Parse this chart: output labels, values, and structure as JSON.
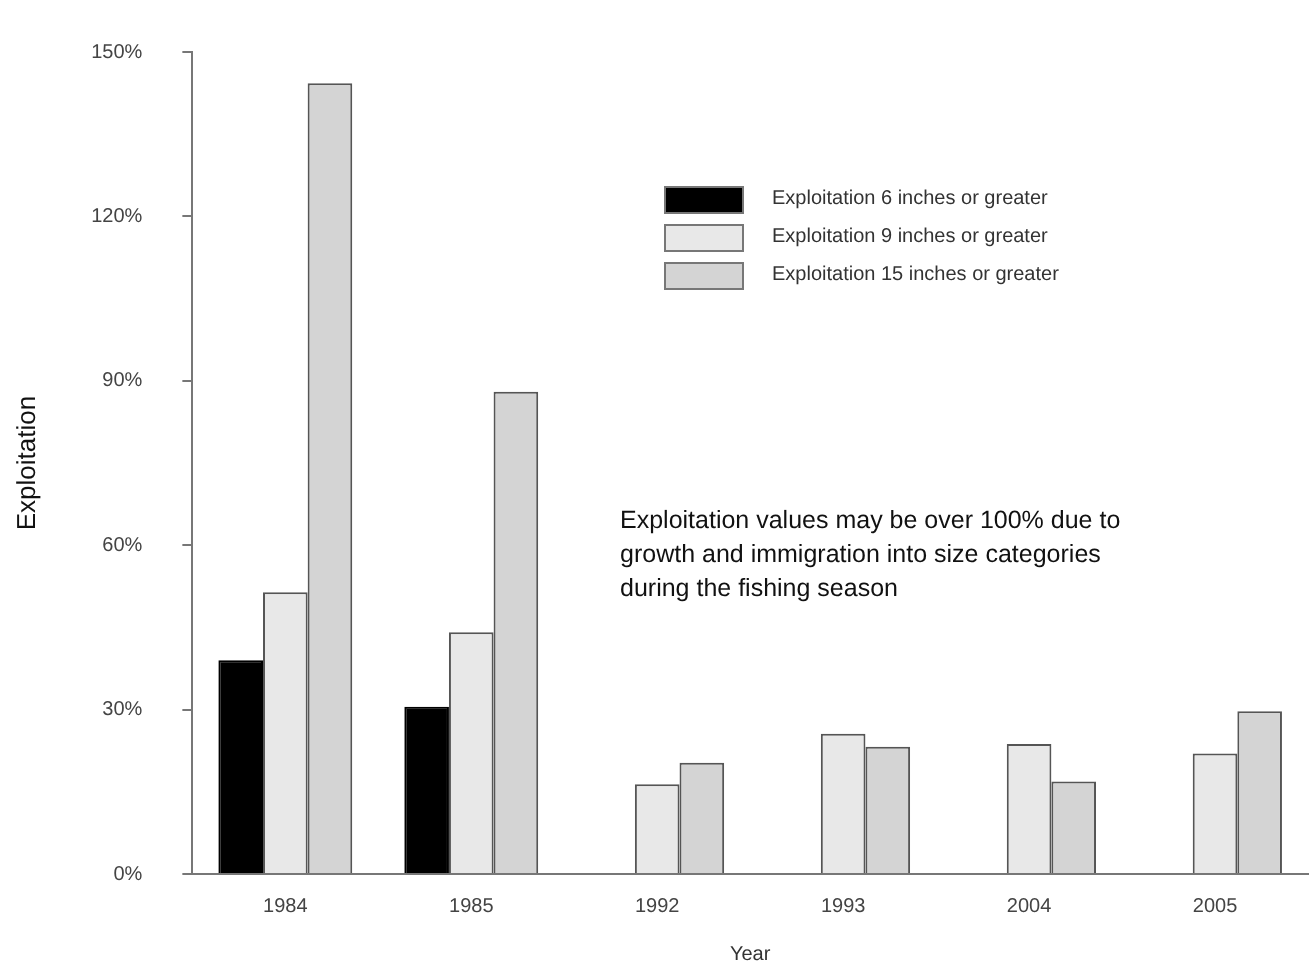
{
  "chart_data": {
    "type": "bar",
    "xlabel": "Year",
    "ylabel": "Exploitation",
    "categories": [
      "1984",
      "1985",
      "1992",
      "1993",
      "2004",
      "2005"
    ],
    "series": [
      {
        "name": "Exploitation 6 inches or greater",
        "color": "#000000",
        "values": [
          39,
          30.5,
          null,
          null,
          null,
          null
        ]
      },
      {
        "name": "Exploitation 9 inches or greater",
        "color": "#e8e8e8",
        "values": [
          51.4,
          44.1,
          16.4,
          25.6,
          23.7,
          22
        ]
      },
      {
        "name": "Exploitation 15 inches or greater",
        "color": "#d4d4d4",
        "values": [
          144.3,
          88,
          20.3,
          23.2,
          16.9,
          29.7
        ]
      }
    ],
    "ylim": [
      0,
      150
    ],
    "yticks": [
      {
        "value": 0,
        "label": "0%"
      },
      {
        "value": 30,
        "label": "30%"
      },
      {
        "value": 60,
        "label": "60%"
      },
      {
        "value": 90,
        "label": "90%"
      },
      {
        "value": 120,
        "label": "120%"
      },
      {
        "value": 150,
        "label": "150%"
      }
    ],
    "grid": false,
    "legend": "top right",
    "annotations": [
      "Exploitation values may be over 100% due to growth and immigration into size categories during the fishing season"
    ]
  }
}
